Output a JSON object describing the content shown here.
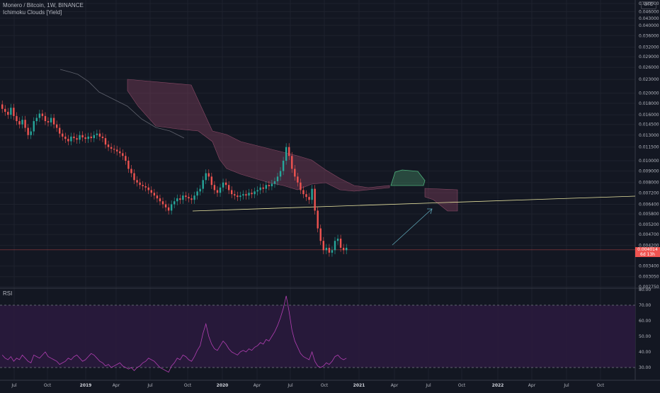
{
  "header": {
    "title": "Monero / Bitcoin, 1W, BINANCE",
    "indicator": "Ichimoku Clouds [Yield]",
    "currency": "BTC"
  },
  "last_price": {
    "value": "0.004014",
    "countdown": "6d 13h"
  },
  "rsi_panel": {
    "label": "RSI",
    "levels": [
      "70.00",
      "60.00",
      "50.00",
      "40.00",
      "30.00"
    ]
  },
  "colors": {
    "background": "#131722",
    "up": "#26a69a",
    "down": "#ef5350",
    "cloud": "#7b3f5a",
    "cloud_green": "#3d7a5a",
    "trendline": "#e8e4a0",
    "rsi_line": "#b33fb3",
    "rsi_band": "#2a1a3d",
    "arrow": "#5fa8b8"
  },
  "chart_data": [
    {
      "type": "candlestick",
      "title": "Monero / Bitcoin, 1W, BINANCE",
      "y_axis_ticks": [
        "0.050000",
        "0.046000",
        "0.043000",
        "0.040000",
        "0.036000",
        "0.032000",
        "0.029000",
        "0.026000",
        "0.023000",
        "0.020000",
        "0.018000",
        "0.016000",
        "0.014500",
        "0.013000",
        "0.011500",
        "0.010000",
        "0.009000",
        "0.008000",
        "0.007200",
        "0.006400",
        "0.005800",
        "0.005200",
        "0.004700",
        "0.004200",
        "0.003400",
        "0.003050",
        "0.002750"
      ],
      "x_axis_ticks": [
        "Jul",
        "Oct",
        "2019",
        "Apr",
        "Jul",
        "Oct",
        "2020",
        "Apr",
        "Jul",
        "Oct",
        "2021",
        "Apr",
        "Jul",
        "Oct",
        "2022",
        "Apr",
        "Jul",
        "Oct"
      ],
      "scale": "log",
      "last_value": 0.004014,
      "close": [
        0.017,
        0.0165,
        0.016,
        0.0172,
        0.0158,
        0.015,
        0.0145,
        0.0152,
        0.014,
        0.013,
        0.0135,
        0.015,
        0.0155,
        0.0162,
        0.0158,
        0.015,
        0.0148,
        0.0155,
        0.0145,
        0.014,
        0.0132,
        0.0128,
        0.0125,
        0.0122,
        0.0128,
        0.0126,
        0.0124,
        0.013,
        0.0127,
        0.0125,
        0.0128,
        0.0126,
        0.013,
        0.0132,
        0.0128,
        0.0126,
        0.0118,
        0.0115,
        0.0113,
        0.0112,
        0.011,
        0.0108,
        0.0105,
        0.01,
        0.0092,
        0.0088,
        0.0082,
        0.008,
        0.0078,
        0.0077,
        0.0076,
        0.0074,
        0.0072,
        0.007,
        0.0068,
        0.0066,
        0.0064,
        0.0062,
        0.006,
        0.0064,
        0.0066,
        0.0068,
        0.0067,
        0.007,
        0.0069,
        0.0068,
        0.0067,
        0.007,
        0.0073,
        0.0075,
        0.0082,
        0.0088,
        0.0085,
        0.0078,
        0.0074,
        0.0072,
        0.0076,
        0.008,
        0.0078,
        0.0074,
        0.0071,
        0.007,
        0.0069,
        0.007,
        0.0071,
        0.007,
        0.0072,
        0.0071,
        0.0073,
        0.0074,
        0.0076,
        0.0075,
        0.0078,
        0.0077,
        0.0079,
        0.0081,
        0.0085,
        0.009,
        0.01,
        0.0115,
        0.0105,
        0.0092,
        0.0085,
        0.008,
        0.0074,
        0.0071,
        0.0069,
        0.0067,
        0.0075,
        0.006,
        0.005,
        0.0044,
        0.004,
        0.0041,
        0.0039,
        0.004,
        0.0044,
        0.0045,
        0.0041,
        0.004,
        0.0041
      ],
      "annotations": [
        "ascending trendline",
        "projection arrow",
        "Ichimoku cloud"
      ]
    },
    {
      "type": "line",
      "title": "RSI",
      "y_axis_ticks": [
        "80.00",
        "70.00",
        "60.00",
        "50.00",
        "40.00",
        "30.00"
      ],
      "levels": [
        70,
        30
      ],
      "values": [
        38,
        36,
        35,
        37,
        34,
        36,
        35,
        38,
        36,
        34,
        33,
        38,
        37,
        36,
        38,
        40,
        37,
        36,
        35,
        34,
        32,
        33,
        34,
        36,
        35,
        37,
        38,
        36,
        34,
        35,
        37,
        39,
        38,
        36,
        34,
        33,
        31,
        32,
        30,
        31,
        32,
        33,
        31,
        30,
        29,
        30,
        28,
        30,
        31,
        33,
        34,
        36,
        35,
        34,
        32,
        30,
        29,
        28,
        27,
        31,
        33,
        36,
        35,
        38,
        37,
        35,
        34,
        37,
        41,
        44,
        52,
        58,
        50,
        45,
        42,
        41,
        44,
        47,
        45,
        42,
        40,
        39,
        38,
        40,
        41,
        40,
        42,
        41,
        43,
        44,
        46,
        45,
        48,
        47,
        50,
        53,
        57,
        62,
        68,
        76,
        66,
        54,
        47,
        43,
        39,
        37,
        36,
        35,
        40,
        34,
        31,
        30,
        31,
        33,
        32,
        34,
        37,
        38,
        36,
        35,
        36
      ]
    }
  ]
}
